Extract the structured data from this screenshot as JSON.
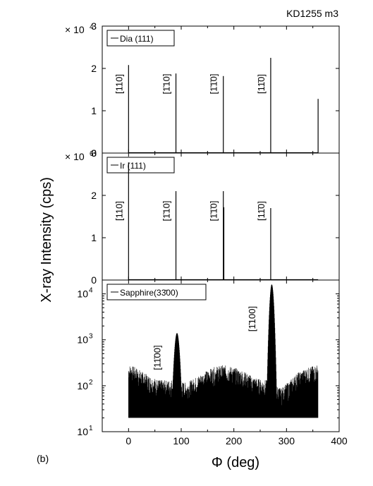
{
  "figure": {
    "sample_label": "KD1255 m3",
    "panel_label": "(b)",
    "y_axis_label": "X-ray Intensity (cps)",
    "x_axis_label": "Φ (deg)"
  },
  "chart_data": [
    {
      "type": "line",
      "legend": "Dia (111)",
      "scale_label": "× 10",
      "scale_exponent": "4",
      "xlim": [
        -50,
        400
      ],
      "ylim": [
        0,
        3
      ],
      "yticks": [
        0,
        1,
        2,
        3
      ],
      "xticks": [
        0,
        100,
        200,
        300,
        400
      ],
      "peaks": [
        {
          "x": 0,
          "y": 2.08
        },
        {
          "x": 90,
          "y": 1.88
        },
        {
          "x": 180,
          "y": 1.82
        },
        {
          "x": 270,
          "y": 2.25
        },
        {
          "x": 360,
          "y": 1.28
        }
      ],
      "annotations": [
        {
          "x": 0,
          "text": "[110]"
        },
        {
          "x": 90,
          "text": "[1̄10]"
        },
        {
          "x": 180,
          "text": "[1̄1̄0]"
        },
        {
          "x": 270,
          "text": "[11̄0]"
        }
      ]
    },
    {
      "type": "line",
      "legend": "Ir (111)",
      "scale_label": "× 10",
      "scale_exponent": "6",
      "xlim": [
        -50,
        400
      ],
      "ylim": [
        0,
        3
      ],
      "yticks": [
        0,
        1,
        2,
        3
      ],
      "xticks": [
        0,
        100,
        200,
        300,
        400
      ],
      "peaks": [
        {
          "x": 0,
          "y": 2.78
        },
        {
          "x": 90,
          "y": 2.1
        },
        {
          "x": 180,
          "y": 2.1
        },
        {
          "x": 181,
          "y": 1.72
        },
        {
          "x": 270,
          "y": 1.7
        }
      ],
      "annotations": [
        {
          "x": 0,
          "text": "[110]"
        },
        {
          "x": 90,
          "text": "[1̄10]"
        },
        {
          "x": 180,
          "text": "[1̄1̄0]"
        },
        {
          "x": 270,
          "text": "[11̄0]"
        }
      ]
    },
    {
      "type": "line",
      "scale": "log",
      "legend": "Sapphire(33̄00)",
      "xlim": [
        -50,
        400
      ],
      "ylim": [
        10,
        20000
      ],
      "yticks": [
        {
          "value": 10,
          "base": "10",
          "exp": "1"
        },
        {
          "value": 100,
          "base": "10",
          "exp": "2"
        },
        {
          "value": 1000,
          "base": "10",
          "exp": "3"
        },
        {
          "value": 10000,
          "base": "10",
          "exp": "4"
        }
      ],
      "xticks": [
        0,
        100,
        200,
        300,
        400
      ],
      "baseline": 20,
      "noise_envelope": [
        {
          "x": 0,
          "y": 200
        },
        {
          "x": 15,
          "y": 170
        },
        {
          "x": 30,
          "y": 130
        },
        {
          "x": 45,
          "y": 105
        },
        {
          "x": 60,
          "y": 92
        },
        {
          "x": 75,
          "y": 90
        },
        {
          "x": 82,
          "y": 95
        },
        {
          "x": 110,
          "y": 80
        },
        {
          "x": 125,
          "y": 100
        },
        {
          "x": 145,
          "y": 140
        },
        {
          "x": 165,
          "y": 180
        },
        {
          "x": 180,
          "y": 195
        },
        {
          "x": 195,
          "y": 180
        },
        {
          "x": 215,
          "y": 150
        },
        {
          "x": 235,
          "y": 110
        },
        {
          "x": 250,
          "y": 95
        },
        {
          "x": 262,
          "y": 92
        },
        {
          "x": 290,
          "y": 60
        },
        {
          "x": 305,
          "y": 85
        },
        {
          "x": 320,
          "y": 130
        },
        {
          "x": 340,
          "y": 170
        },
        {
          "x": 360,
          "y": 200
        }
      ],
      "peaks": [
        {
          "x": 92,
          "y": 1400,
          "width": 5
        },
        {
          "x": 272,
          "y": 16000,
          "width": 4
        }
      ],
      "annotations": [
        {
          "x": 90,
          "text": "[11̄00]"
        },
        {
          "x": 270,
          "text": "[1̄100]"
        }
      ]
    }
  ]
}
